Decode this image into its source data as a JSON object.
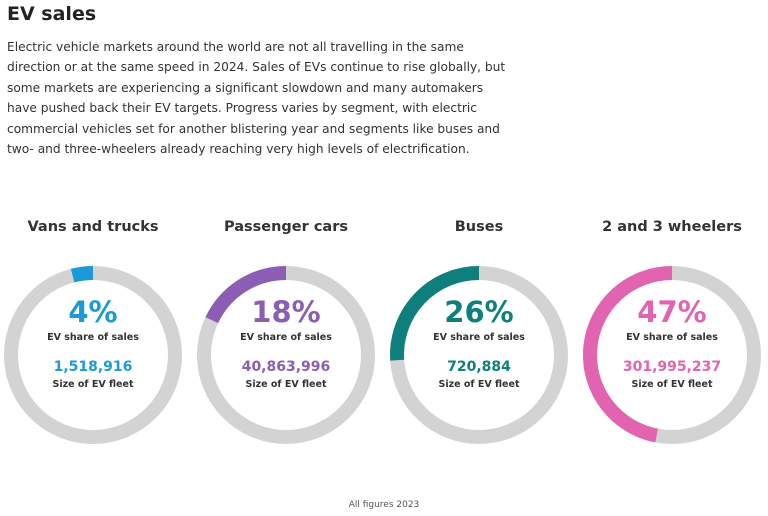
{
  "title": "EV sales",
  "intro": "Electric vehicle markets around the world are not all travelling in the same direction or at the same speed in 2024. Sales of EVs continue to rise globally, but some markets are experiencing a significant slowdown and many automakers have pushed back their EV targets. Progress varies by segment, with electric commercial vehicles set for another blistering year and segments like buses and two- and three-wheelers already reaching very high levels of electrification.",
  "footnote": "All figures 2023",
  "colors": {
    "track": "#d3d3d3"
  },
  "chart_data": [
    {
      "type": "pie",
      "title": "Vans and trucks",
      "share": 4,
      "share_text": "4%",
      "share_label": "EV share of sales",
      "fleet": 1518916,
      "fleet_text": "1,518,916",
      "fleet_label": "Size of EV fleet",
      "color": "#1a9bd7"
    },
    {
      "type": "pie",
      "title": "Passenger cars",
      "share": 18,
      "share_text": "18%",
      "share_label": "EV share of sales",
      "fleet": 40863996,
      "fleet_text": "40,863,996",
      "fleet_label": "Size of EV fleet",
      "color": "#8b5db5"
    },
    {
      "type": "pie",
      "title": "Buses",
      "share": 26,
      "share_text": "26%",
      "share_label": "EV share of sales",
      "fleet": 720884,
      "fleet_text": "720,884",
      "fleet_label": "Size of EV fleet",
      "color": "#0e7f7c"
    },
    {
      "type": "pie",
      "title": "2 and 3 wheelers",
      "share": 47,
      "share_text": "47%",
      "share_label": "EV share of sales",
      "fleet": 301995237,
      "fleet_text": "301,995,237",
      "fleet_label": "Size of EV fleet",
      "color": "#e264b1"
    }
  ]
}
